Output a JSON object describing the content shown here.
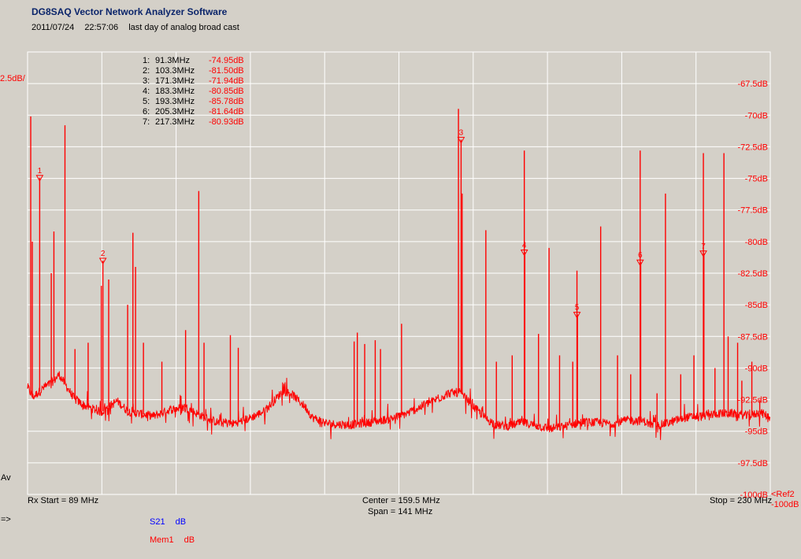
{
  "header": {
    "app_title": "DG8SAQ Vector Network Analyzer Software",
    "date": "2011/07/24",
    "time": "22:57:06",
    "comment": "last day of analog broad cast"
  },
  "axis": {
    "scale_label": "2.5dB/",
    "av_label": "Av",
    "rx_start": "Rx Start = 89 MHz",
    "center": "Center = 159.5 MHz",
    "span": "Span = 141 MHz",
    "stop": "Stop = 230 MHz",
    "ref_line1": "<Ref2",
    "ref_line2": "-100dB"
  },
  "footer": {
    "arrow": "=>",
    "trace1_name": "S21",
    "trace1_unit": "dB",
    "trace2_name": "Mem1",
    "trace2_unit": "dB"
  },
  "colors": {
    "trace": "#ff0000",
    "grid": "#ffffff",
    "background": "#d4d0c8",
    "title": "#0a246a",
    "s21": "#0000ff"
  },
  "chart_data": {
    "type": "line",
    "xlim": [
      89,
      230
    ],
    "ylim": [
      -100,
      -65
    ],
    "x_unit": "MHz",
    "y_unit": "dB",
    "grid": true,
    "y_ticks": [
      "-67.5dB",
      "-70dB",
      "-72.5dB",
      "-75dB",
      "-77.5dB",
      "-80dB",
      "-82.5dB",
      "-85dB",
      "-87.5dB",
      "-90dB",
      "-92.5dB",
      "-95dB",
      "-97.5dB",
      "-100dB"
    ],
    "y_tick_values": [
      -67.5,
      -70,
      -72.5,
      -75,
      -77.5,
      -80,
      -82.5,
      -85,
      -87.5,
      -90,
      -92.5,
      -95,
      -97.5,
      -100
    ],
    "markers": [
      {
        "id": "1",
        "freq": "91.3MHz",
        "level": "-74.95dB",
        "x": 91.3,
        "y": -74.95
      },
      {
        "id": "2",
        "freq": "103.3MHz",
        "level": "-81.50dB",
        "x": 103.3,
        "y": -81.5
      },
      {
        "id": "3",
        "freq": "171.3MHz",
        "level": "-71.94dB",
        "x": 171.3,
        "y": -71.94
      },
      {
        "id": "4",
        "freq": "183.3MHz",
        "level": "-80.85dB",
        "x": 183.3,
        "y": -80.85
      },
      {
        "id": "5",
        "freq": "193.3MHz",
        "level": "-85.78dB",
        "x": 193.3,
        "y": -85.78
      },
      {
        "id": "6",
        "freq": "205.3MHz",
        "level": "-81.64dB",
        "x": 205.3,
        "y": -81.64
      },
      {
        "id": "7",
        "freq": "217.3MHz",
        "level": "-80.93dB",
        "x": 217.3,
        "y": -80.93
      }
    ],
    "series": [
      {
        "baseline": [
          [
            89,
            -91.5
          ],
          [
            90,
            -92.3
          ],
          [
            92,
            -91.6
          ],
          [
            94,
            -91.0
          ],
          [
            95,
            -90.5
          ],
          [
            96,
            -91.2
          ],
          [
            98,
            -92.5
          ],
          [
            100,
            -93.0
          ],
          [
            103,
            -93.5
          ],
          [
            106,
            -92.6
          ],
          [
            108,
            -93.4
          ],
          [
            110,
            -93.6
          ],
          [
            113,
            -93.8
          ],
          [
            116,
            -93.3
          ],
          [
            119,
            -93.1
          ],
          [
            122,
            -93.8
          ],
          [
            125,
            -94.3
          ],
          [
            128,
            -94.4
          ],
          [
            131,
            -94.0
          ],
          [
            134,
            -93.4
          ],
          [
            136,
            -92.5
          ],
          [
            137.5,
            -91.8
          ],
          [
            139,
            -92.0
          ],
          [
            140.5,
            -92.6
          ],
          [
            142,
            -93.2
          ],
          [
            143,
            -93.9
          ],
          [
            146,
            -94.4
          ],
          [
            150,
            -94.5
          ],
          [
            154,
            -94.3
          ],
          [
            158,
            -94.0
          ],
          [
            161,
            -93.6
          ],
          [
            164,
            -93.0
          ],
          [
            167,
            -92.4
          ],
          [
            169,
            -92.0
          ],
          [
            171,
            -91.9
          ],
          [
            172,
            -92.3
          ],
          [
            174,
            -93.2
          ],
          [
            176,
            -94.0
          ],
          [
            178,
            -94.5
          ],
          [
            180,
            -94.6
          ],
          [
            183,
            -94.3
          ],
          [
            185,
            -94.5
          ],
          [
            188,
            -94.8
          ],
          [
            191,
            -94.6
          ],
          [
            194,
            -94.3
          ],
          [
            197,
            -94.3
          ],
          [
            200,
            -94.4
          ],
          [
            203,
            -94.1
          ],
          [
            206,
            -94.2
          ],
          [
            208,
            -94.6
          ],
          [
            211,
            -94.3
          ],
          [
            214,
            -93.9
          ],
          [
            217,
            -93.8
          ],
          [
            220,
            -93.6
          ],
          [
            223,
            -93.6
          ],
          [
            226,
            -93.8
          ],
          [
            228,
            -93.5
          ],
          [
            230,
            -93.9
          ]
        ],
        "spikes": [
          [
            89.6,
            -70.1
          ],
          [
            89.9,
            -80.0
          ],
          [
            91.3,
            -74.95
          ],
          [
            93.5,
            -82.5
          ],
          [
            94.0,
            -79.2
          ],
          [
            96.1,
            -70.8
          ],
          [
            98.0,
            -88.5
          ],
          [
            100.5,
            -88.0
          ],
          [
            103.0,
            -83.5
          ],
          [
            103.3,
            -81.5
          ],
          [
            104.4,
            -83.0
          ],
          [
            108.0,
            -85.0
          ],
          [
            109.0,
            -79.3
          ],
          [
            109.5,
            -82.0
          ],
          [
            111.0,
            -88.0
          ],
          [
            114.5,
            -89.5
          ],
          [
            119.0,
            -87.0
          ],
          [
            121.5,
            -76.0
          ],
          [
            122.5,
            -88.0
          ],
          [
            127.5,
            -87.4
          ],
          [
            129.0,
            -88.4
          ],
          [
            151.0,
            -87.9
          ],
          [
            151.6,
            -87.2
          ],
          [
            153.0,
            -88.1
          ],
          [
            155.0,
            -87.8
          ],
          [
            156.0,
            -88.5
          ],
          [
            160.0,
            -86.5
          ],
          [
            170.8,
            -69.5
          ],
          [
            171.3,
            -71.94
          ],
          [
            171.5,
            -76.2
          ],
          [
            176.0,
            -79.1
          ],
          [
            178.0,
            -89.5
          ],
          [
            181.0,
            -89.0
          ],
          [
            183.3,
            -72.8
          ],
          [
            183.4,
            -80.85
          ],
          [
            186.0,
            -87.3
          ],
          [
            188.0,
            -80.5
          ],
          [
            190.0,
            -89.0
          ],
          [
            192.5,
            -89.5
          ],
          [
            193.3,
            -82.3
          ],
          [
            193.4,
            -85.78
          ],
          [
            197.8,
            -78.8
          ],
          [
            201.0,
            -89.0
          ],
          [
            203.5,
            -90.5
          ],
          [
            205.3,
            -72.8
          ],
          [
            205.4,
            -81.64
          ],
          [
            208.5,
            -92.0
          ],
          [
            210.1,
            -76.2
          ],
          [
            213.0,
            -90.5
          ],
          [
            215.5,
            -89.0
          ],
          [
            217.3,
            -73.0
          ],
          [
            217.4,
            -80.93
          ],
          [
            219.5,
            -90.0
          ],
          [
            221.2,
            -73.0
          ],
          [
            222.0,
            -87.5
          ],
          [
            223.8,
            -88.0
          ],
          [
            224.6,
            -91.0
          ],
          [
            226.5,
            -89.5
          ],
          [
            228.0,
            -92.5
          ]
        ]
      }
    ]
  }
}
